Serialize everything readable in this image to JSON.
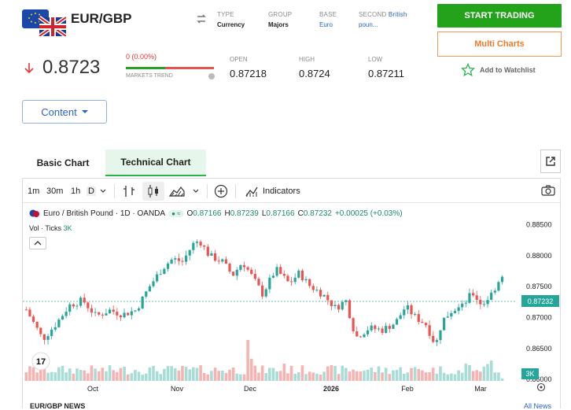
{
  "header": {
    "pair": "EUR/GBP",
    "meta": [
      {
        "label": "TYPE",
        "value": "Currency"
      },
      {
        "label": "GROUP",
        "value": "Majors"
      },
      {
        "label": "BASE",
        "value": "Euro"
      },
      {
        "label": "SECOND",
        "value_blue": "British poun..."
      }
    ],
    "second_label": "SECOND",
    "second_inline": "British",
    "second_value": "poun..."
  },
  "actions": {
    "trade": "START TRADING",
    "multi": "Multi Charts",
    "watch": "Add to Watchlist"
  },
  "quote": {
    "price": "0.8723",
    "change": "0 (0.00%)",
    "trend_label": "MARKETS TREND",
    "open_label": "OPEN",
    "open": "0.87218",
    "high_label": "HIGH",
    "high": "0.8724",
    "low_label": "LOW",
    "low": "0.87211"
  },
  "content_button": "Content",
  "tabs": {
    "basic": "Basic Chart",
    "technical": "Technical Chart"
  },
  "toolbar": {
    "t1": "1m",
    "t2": "30m",
    "t3": "1h",
    "t4": "D",
    "indicators": "Indicators"
  },
  "legend": {
    "title": "Euro / British Pound · 1D · OANDA",
    "o_label": "O",
    "o": "0.87166",
    "h_label": "H",
    "h": "0.87239",
    "l_label": "L",
    "l": "0.87166",
    "c_label": "C",
    "c": "0.87232",
    "chg": "+0.00025 (+0.03%)",
    "vol_label": "Vol · Ticks",
    "vol": "3K"
  },
  "chart_data": {
    "type": "candlestick",
    "y_ticks": [
      "0.88500",
      "0.88000",
      "0.87500",
      "0.87000",
      "0.86500",
      "0.86000"
    ],
    "x_ticks": [
      "Oct",
      "Nov",
      "Dec",
      "2026",
      "Feb",
      "Mar"
    ],
    "last_price": "0.87232",
    "vol_last": "3K",
    "ylim": [
      0.8585,
      0.8885
    ]
  },
  "footer": {
    "news": "EUR/GBP NEWS",
    "all": "All News"
  },
  "colors": {
    "up": "#26a69a",
    "down": "#ef5350",
    "green": "#23a31a",
    "orange": "#ee7a2a",
    "blue": "#2a62c9"
  }
}
